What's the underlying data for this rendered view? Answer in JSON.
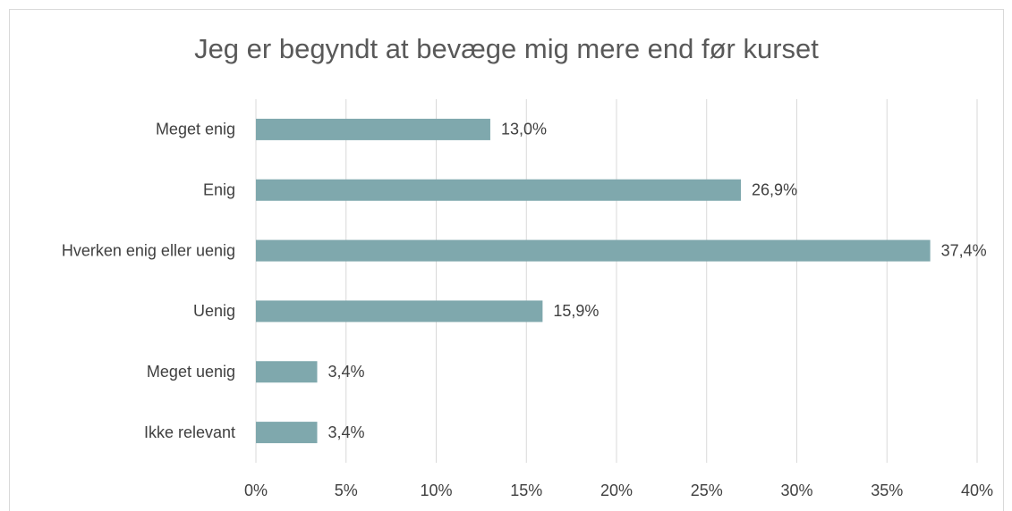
{
  "chart_data": {
    "type": "hbar",
    "title": "Jeg er begyndt at bevæge mig mere end før kurset",
    "categories": [
      "Meget enig",
      "Enig",
      "Hverken enig eller uenig",
      "Uenig",
      "Meget uenig",
      "Ikke relevant"
    ],
    "values": [
      13.0,
      26.9,
      37.4,
      15.9,
      3.4,
      3.4
    ],
    "value_labels": [
      "13,0%",
      "26,9%",
      "37,4%",
      "15,9%",
      "3,4%",
      "3,4%"
    ],
    "color": "#7fa8ad",
    "xlim": [
      0,
      40
    ],
    "xticks": [
      {
        "value": 0,
        "label": "0%"
      },
      {
        "value": 5,
        "label": "5%"
      },
      {
        "value": 10,
        "label": "10%"
      },
      {
        "value": 15,
        "label": "15%"
      },
      {
        "value": 20,
        "label": "20%"
      },
      {
        "value": 25,
        "label": "25%"
      },
      {
        "value": 30,
        "label": "30%"
      },
      {
        "value": 35,
        "label": "35%"
      },
      {
        "value": 40,
        "label": "40%"
      }
    ],
    "grid": true
  }
}
